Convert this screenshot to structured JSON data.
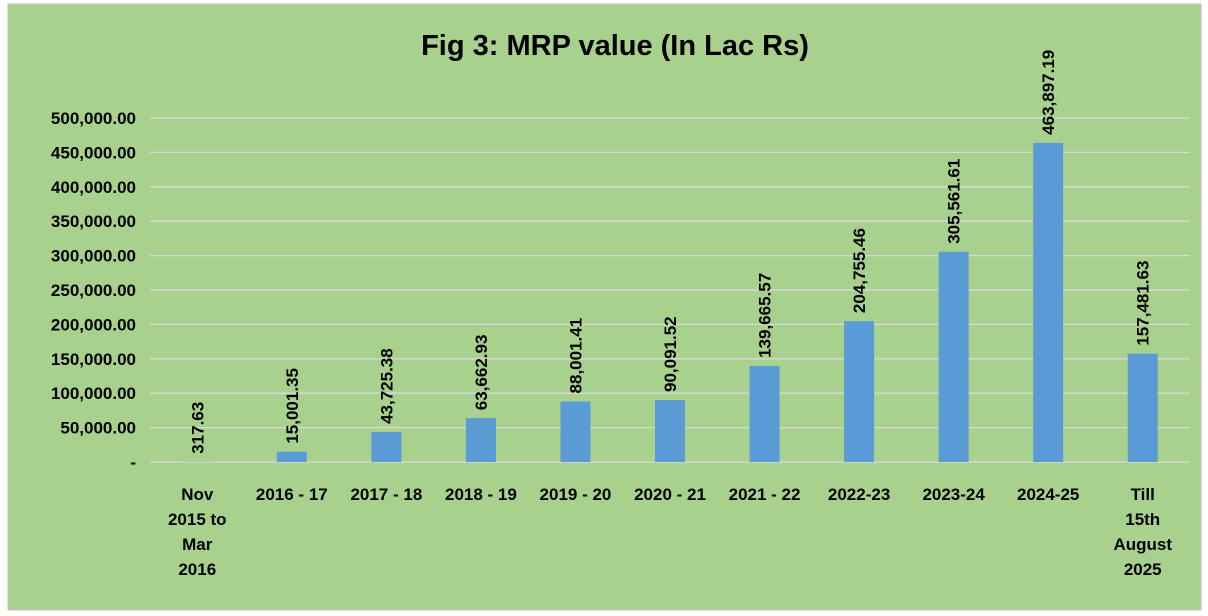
{
  "chart_data": {
    "type": "bar",
    "title": "Fig 3: MRP value (In Lac Rs)",
    "categories": [
      "Nov 2015 to Mar 2016",
      "2016 - 17",
      "2017 - 18",
      "2018 - 19",
      "2019 - 20",
      "2020 - 21",
      "2021 - 22",
      "2022-23",
      "2023-24",
      "2024-25",
      "Till 15th August 2025"
    ],
    "values": [
      317.63,
      15001.35,
      43725.38,
      63662.93,
      88001.41,
      90091.52,
      139665.57,
      204755.46,
      305561.61,
      463897.19,
      157481.63
    ],
    "value_labels": [
      "317.63",
      "15,001.35",
      "43,725.38",
      "63,662.93",
      "88,001.41",
      "90,091.52",
      "139,665.57",
      "204,755.46",
      "305,561.61",
      "463,897.19",
      "157,481.63"
    ],
    "color": "#5b9bd5",
    "ylim": [
      0,
      500000
    ],
    "yticks": [
      {
        "value": 0,
        "label": "-"
      },
      {
        "value": 50000,
        "label": "50,000.00"
      },
      {
        "value": 100000,
        "label": "100,000.00"
      },
      {
        "value": 150000,
        "label": "150,000.00"
      },
      {
        "value": 200000,
        "label": "200,000.00"
      },
      {
        "value": 250000,
        "label": "250,000.00"
      },
      {
        "value": 300000,
        "label": "300,000.00"
      },
      {
        "value": 350000,
        "label": "350,000.00"
      },
      {
        "value": 400000,
        "label": "400,000.00"
      },
      {
        "value": 450000,
        "label": "450,000.00"
      },
      {
        "value": 500000,
        "label": "500,000.00"
      }
    ],
    "grid": true
  }
}
